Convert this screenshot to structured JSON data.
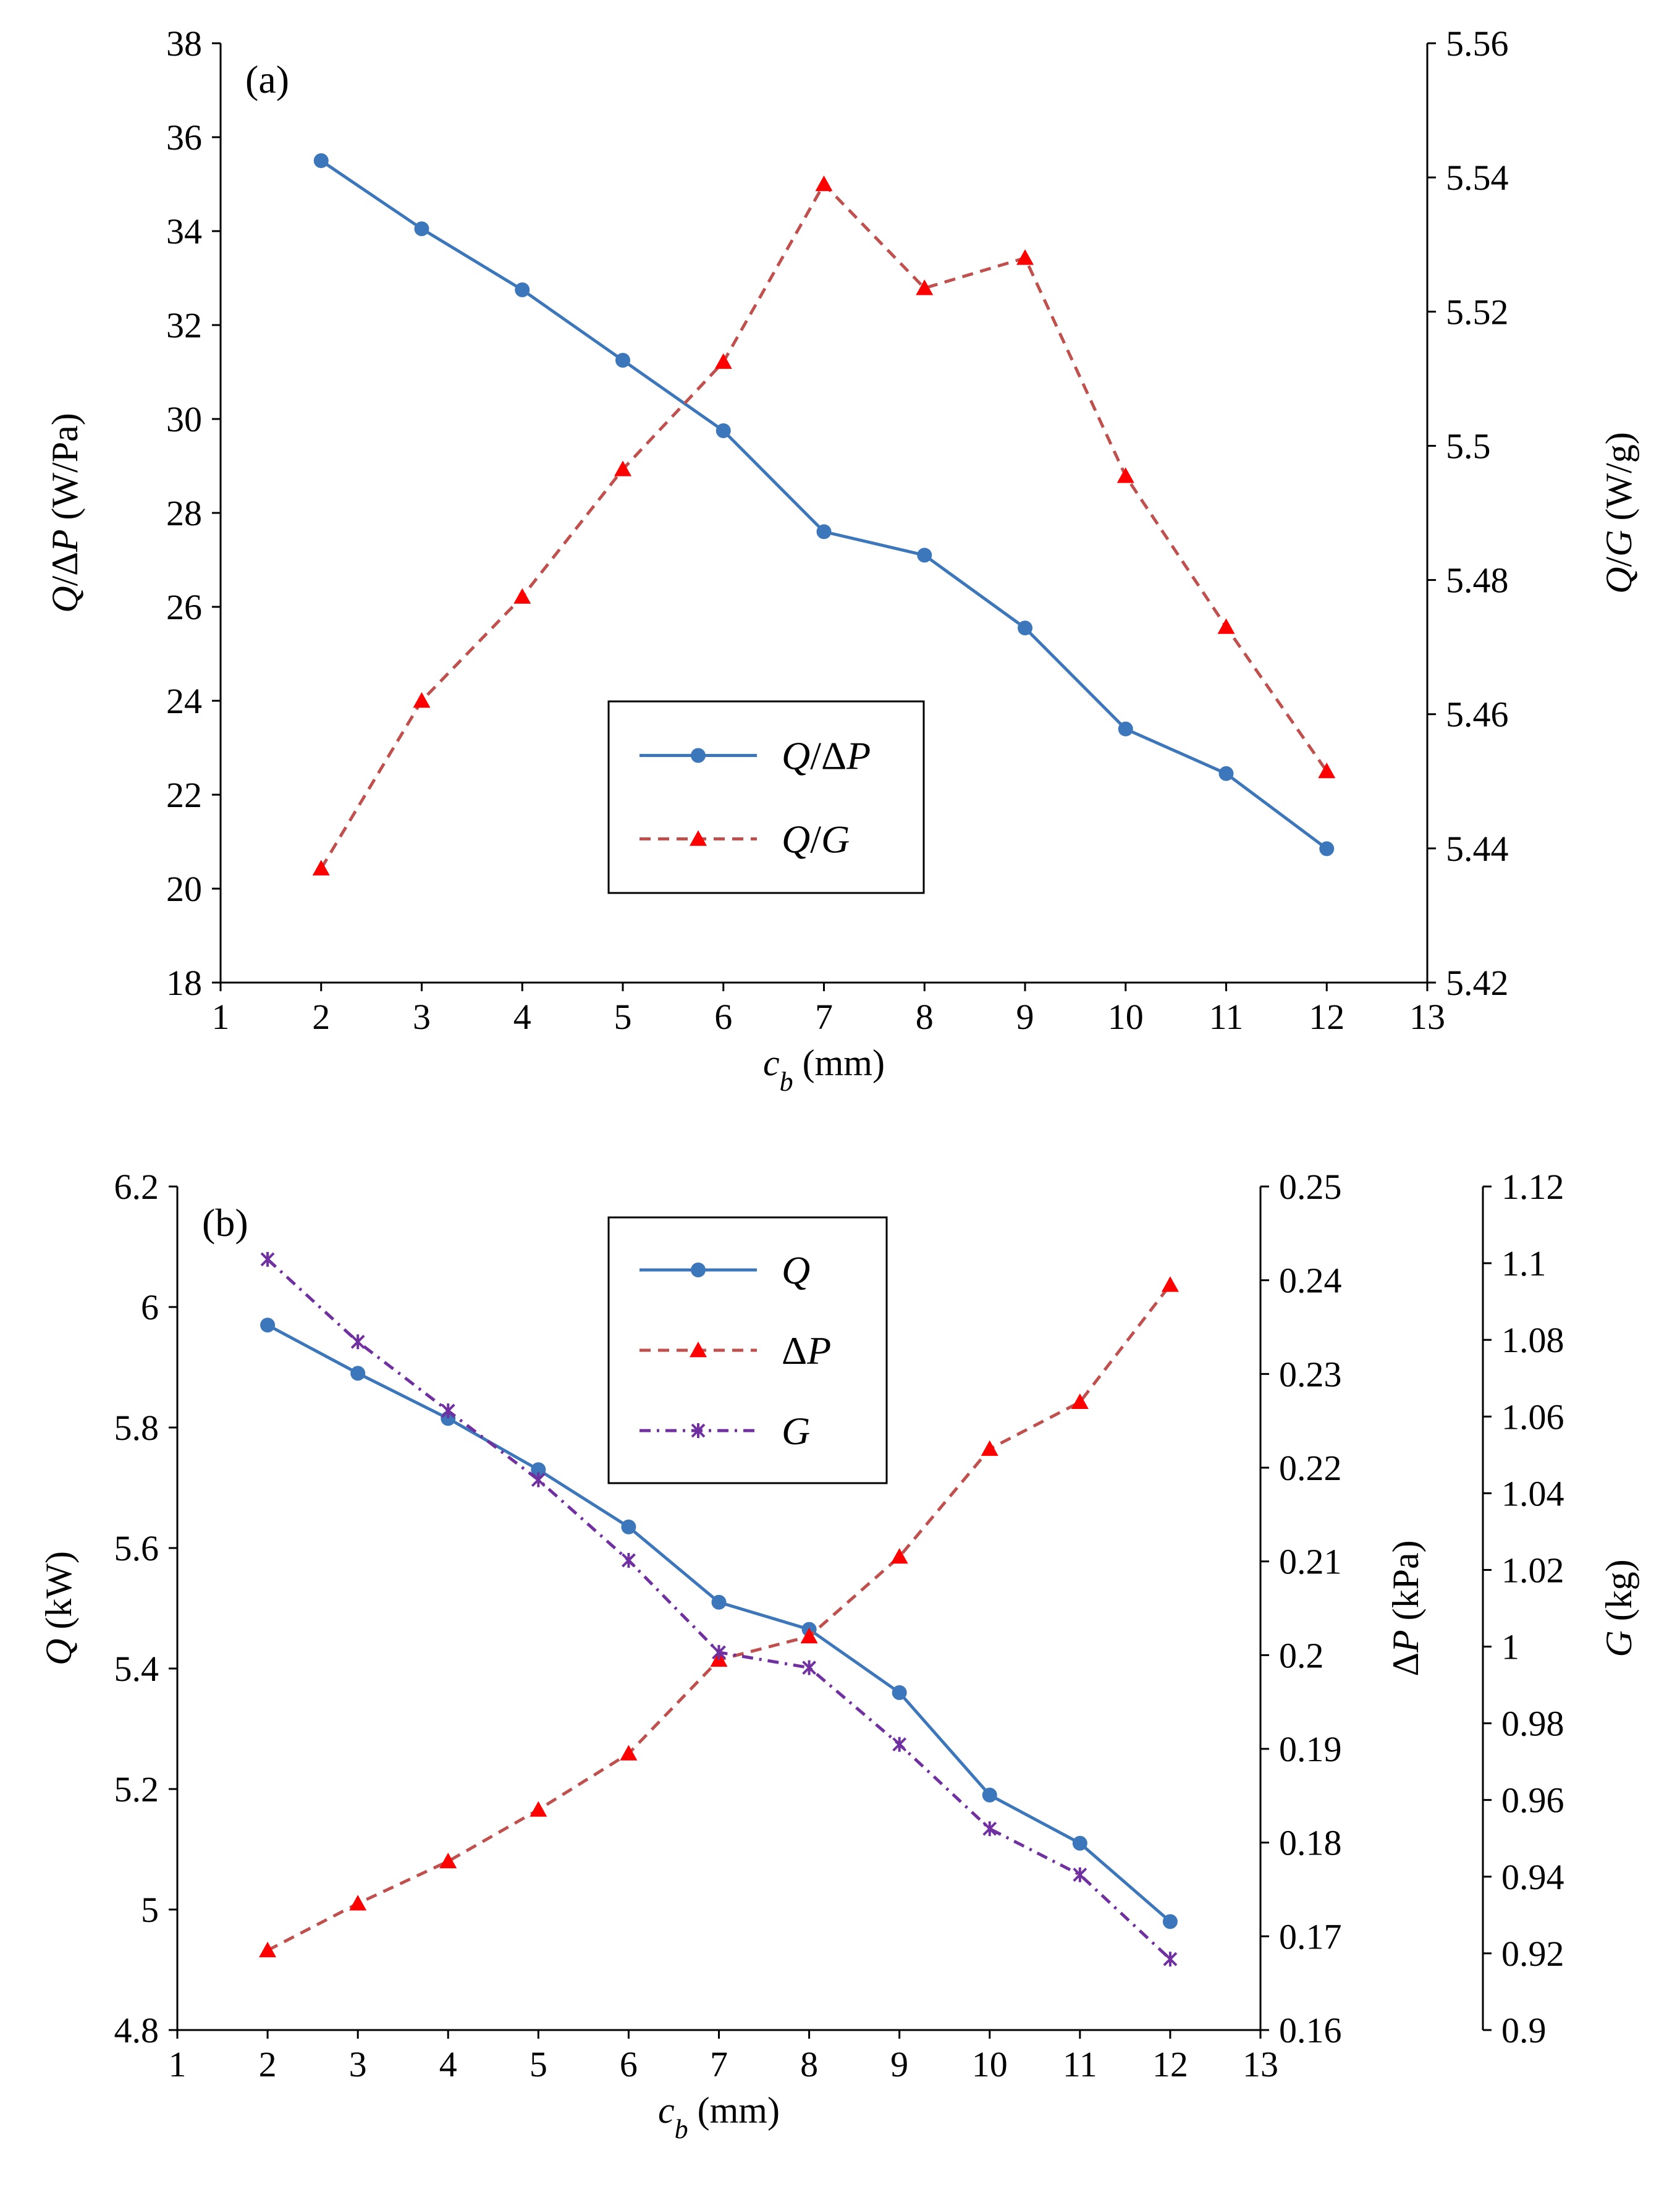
{
  "chart_data": [
    {
      "type": "line",
      "panel_label": "(a)",
      "categories": [
        2,
        3,
        4,
        5,
        6,
        7,
        8,
        9,
        10,
        11,
        12
      ],
      "xlabel": "c_b (mm)",
      "xlabel_main": "c",
      "xlabel_sub": "b",
      "xlabel_unit": " (mm)",
      "xlim": [
        1,
        13
      ],
      "xticks": [
        "1",
        "2",
        "3",
        "4",
        "5",
        "6",
        "7",
        "8",
        "9",
        "10",
        "11",
        "12",
        "13"
      ],
      "y_left": {
        "label_parts": [
          "Q",
          "/Δ",
          "P",
          " (W/Pa)"
        ],
        "ylim": [
          18,
          38
        ],
        "ticks": [
          "18",
          "20",
          "22",
          "24",
          "26",
          "28",
          "30",
          "32",
          "34",
          "36",
          "38"
        ]
      },
      "y_right": {
        "label_parts": [
          "Q",
          "/",
          "G",
          " (W/g)"
        ],
        "ylim": [
          5.42,
          5.56
        ],
        "ticks": [
          "5.42",
          "5.44",
          "5.46",
          "5.48",
          "5.5",
          "5.52",
          "5.54",
          "5.56"
        ]
      },
      "series": [
        {
          "name": "Q/ΔP",
          "legend_parts": [
            "Q",
            "/Δ",
            "P"
          ],
          "axis": "left",
          "color": "#3d77bb",
          "marker": "circle",
          "style": "solid",
          "values": [
            35.5,
            34.05,
            32.75,
            31.25,
            29.75,
            27.6,
            27.1,
            25.55,
            23.4,
            22.45,
            20.85
          ]
        },
        {
          "name": "Q/G",
          "legend_parts": [
            "Q",
            "/",
            "G"
          ],
          "axis": "right",
          "color": "#c0504d",
          "marker_color": "#ff0000",
          "marker": "triangle",
          "style": "dashed",
          "values": [
            5.437,
            5.462,
            5.4775,
            5.4965,
            5.5125,
            5.539,
            5.5235,
            5.528,
            5.4955,
            5.473,
            5.4515
          ]
        }
      ],
      "legend_position": "center"
    },
    {
      "type": "line",
      "panel_label": "(b)",
      "categories": [
        2,
        3,
        4,
        5,
        6,
        7,
        8,
        9,
        10,
        11,
        12
      ],
      "xlabel": "c_b (mm)",
      "xlabel_main": "c",
      "xlabel_sub": "b",
      "xlabel_unit": " (mm)",
      "xlim": [
        1,
        13
      ],
      "xticks": [
        "1",
        "2",
        "3",
        "4",
        "5",
        "6",
        "7",
        "8",
        "9",
        "10",
        "11",
        "12",
        "13"
      ],
      "y_left": {
        "label_parts": [
          "Q",
          "",
          "",
          " (kW)"
        ],
        "ylim": [
          4.8,
          6.2
        ],
        "ticks": [
          "4.8",
          "5",
          "5.2",
          "5.4",
          "5.6",
          "5.8",
          "6",
          "6.2"
        ]
      },
      "y_right": {
        "label_parts": [
          "Δ",
          "P",
          "",
          " (kPa)"
        ],
        "ylim": [
          0.16,
          0.25
        ],
        "ticks": [
          "0.16",
          "0.17",
          "0.18",
          "0.19",
          "0.2",
          "0.21",
          "0.22",
          "0.23",
          "0.24",
          "0.25"
        ]
      },
      "y_right2": {
        "label_parts": [
          "G",
          "",
          "",
          " (kg)"
        ],
        "ylim": [
          0.9,
          1.12
        ],
        "ticks": [
          "0.9",
          "0.92",
          "0.94",
          "0.96",
          "0.98",
          "1",
          "1.02",
          "1.04",
          "1.06",
          "1.08",
          "1.1",
          "1.12"
        ]
      },
      "series": [
        {
          "name": "Q",
          "legend_parts": [
            "Q",
            "",
            ""
          ],
          "axis": "left",
          "color": "#3d77bb",
          "marker": "circle",
          "style": "solid",
          "values": [
            5.97,
            5.89,
            5.815,
            5.73,
            5.635,
            5.51,
            5.465,
            5.36,
            5.19,
            5.11,
            4.98
          ]
        },
        {
          "name": "ΔP",
          "legend_parts": [
            "Δ",
            "P",
            ""
          ],
          "axis": "right",
          "color": "#c0504d",
          "marker_color": "#ff0000",
          "marker": "triangle",
          "style": "dashed",
          "values": [
            0.1685,
            0.1735,
            0.178,
            0.1835,
            0.1895,
            0.1995,
            0.202,
            0.2105,
            0.222,
            0.227,
            0.2395
          ]
        },
        {
          "name": "G",
          "legend_parts": [
            "G",
            "",
            ""
          ],
          "axis": "right2",
          "color": "#7030a0",
          "marker": "asterisk",
          "style": "dashdot",
          "values": [
            1.101,
            1.0795,
            1.0615,
            1.0435,
            1.0225,
            0.9985,
            0.9945,
            0.9745,
            0.9525,
            0.9405,
            0.9185
          ]
        }
      ],
      "legend_position": "top-center"
    }
  ]
}
